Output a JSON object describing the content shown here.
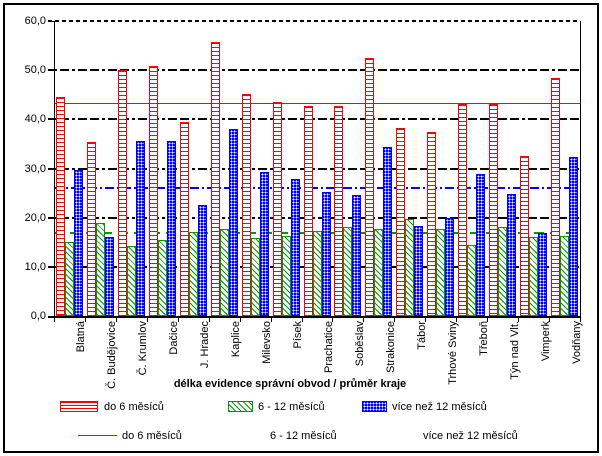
{
  "chart_data": {
    "type": "bar",
    "title": "",
    "xlabel": "délka evidence správní obvod / průměr kraje",
    "ylabel": "",
    "ylim": [
      0,
      60
    ],
    "ytick_step": 10,
    "ytick_labels": [
      "0,0",
      "10,0",
      "20,0",
      "30,0",
      "40,0",
      "50,0",
      "60,0"
    ],
    "grid": "horizontal-dashed",
    "legend_position": "bottom",
    "categories": [
      "Blatná",
      "Č. Budějovice",
      "Č. Krumlov",
      "Dačice",
      "J. Hradec",
      "Kaplice",
      "Milevsko",
      "Písek",
      "Prachatice",
      "Soběslav",
      "Strakonice",
      "Tábor",
      "Trhové Sviny",
      "Třeboň",
      "Týn nad Vlt.",
      "Vimperk",
      "Vodňany"
    ],
    "series": [
      {
        "name": "do 6 měsíců",
        "color": "#ff0000",
        "pattern": "horizontal-stripes",
        "values": [
          44.5,
          35.4,
          50.0,
          50.9,
          39.5,
          55.7,
          45.2,
          43.6,
          42.7,
          42.7,
          52.4,
          38.2,
          37.4,
          43.2,
          43.2,
          32.6,
          48.5
        ]
      },
      {
        "name": "6 - 12 měsíců",
        "color": "#009900",
        "pattern": "diagonal-stripes",
        "values": [
          15.0,
          18.9,
          14.2,
          15.5,
          17.1,
          17.6,
          15.9,
          16.2,
          17.3,
          18.2,
          17.7,
          19.8,
          17.7,
          14.4,
          18.2,
          16.0,
          16.3
        ]
      },
      {
        "name": "více než 12 měsíců",
        "color": "#0000ff",
        "pattern": "dots",
        "values": [
          29.7,
          16.1,
          35.6,
          35.5,
          22.5,
          38.1,
          29.3,
          27.8,
          25.2,
          24.7,
          34.3,
          18.4,
          19.9,
          28.8,
          24.9,
          16.9,
          32.3
        ]
      }
    ],
    "reference_lines": [
      {
        "name": "do 6 měsíců",
        "value": 43.4,
        "color": "#ff0000",
        "style": "solid"
      },
      {
        "name": "6 - 12 měsíců",
        "value": 17.0,
        "color": "#009900",
        "style": "dashed"
      },
      {
        "name": "více než 12 měsíců",
        "value": 26.3,
        "color": "#0000ff",
        "style": "dash-dot"
      }
    ]
  }
}
